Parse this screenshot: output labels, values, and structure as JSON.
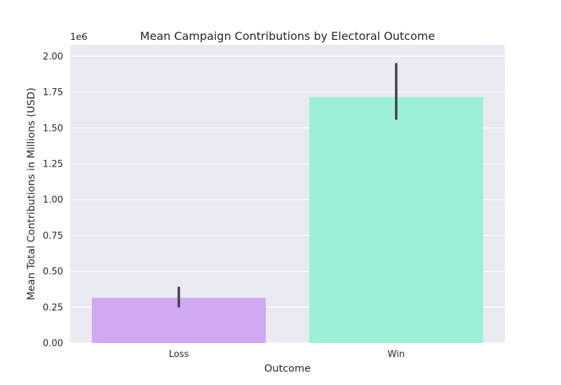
{
  "chart_data": {
    "type": "bar",
    "title": "Mean Campaign Contributions by Electoral Outcome",
    "xlabel": "Outcome",
    "ylabel": "Mean Total Contributions in Millions (USD)",
    "y_offset_label": "1e6",
    "categories": [
      "Loss",
      "Win"
    ],
    "values": [
      315000,
      1715000
    ],
    "error_bars": [
      {
        "low": 255000,
        "high": 385000
      },
      {
        "low": 1565000,
        "high": 1945000
      }
    ],
    "ylim": [
      0,
      2080000
    ],
    "yticks": [
      0,
      250000,
      500000,
      750000,
      1000000,
      1250000,
      1500000,
      1750000,
      2000000
    ],
    "ytick_labels": [
      "0.00",
      "0.25",
      "0.50",
      "0.75",
      "1.00",
      "1.25",
      "1.50",
      "1.75",
      "2.00"
    ],
    "grid": true,
    "colors": {
      "background": "#eaeaf2",
      "grid": "#ffffff",
      "bars": [
        "#cfaaf3",
        "#9cf0d8"
      ],
      "error_bar": "#424242"
    }
  }
}
